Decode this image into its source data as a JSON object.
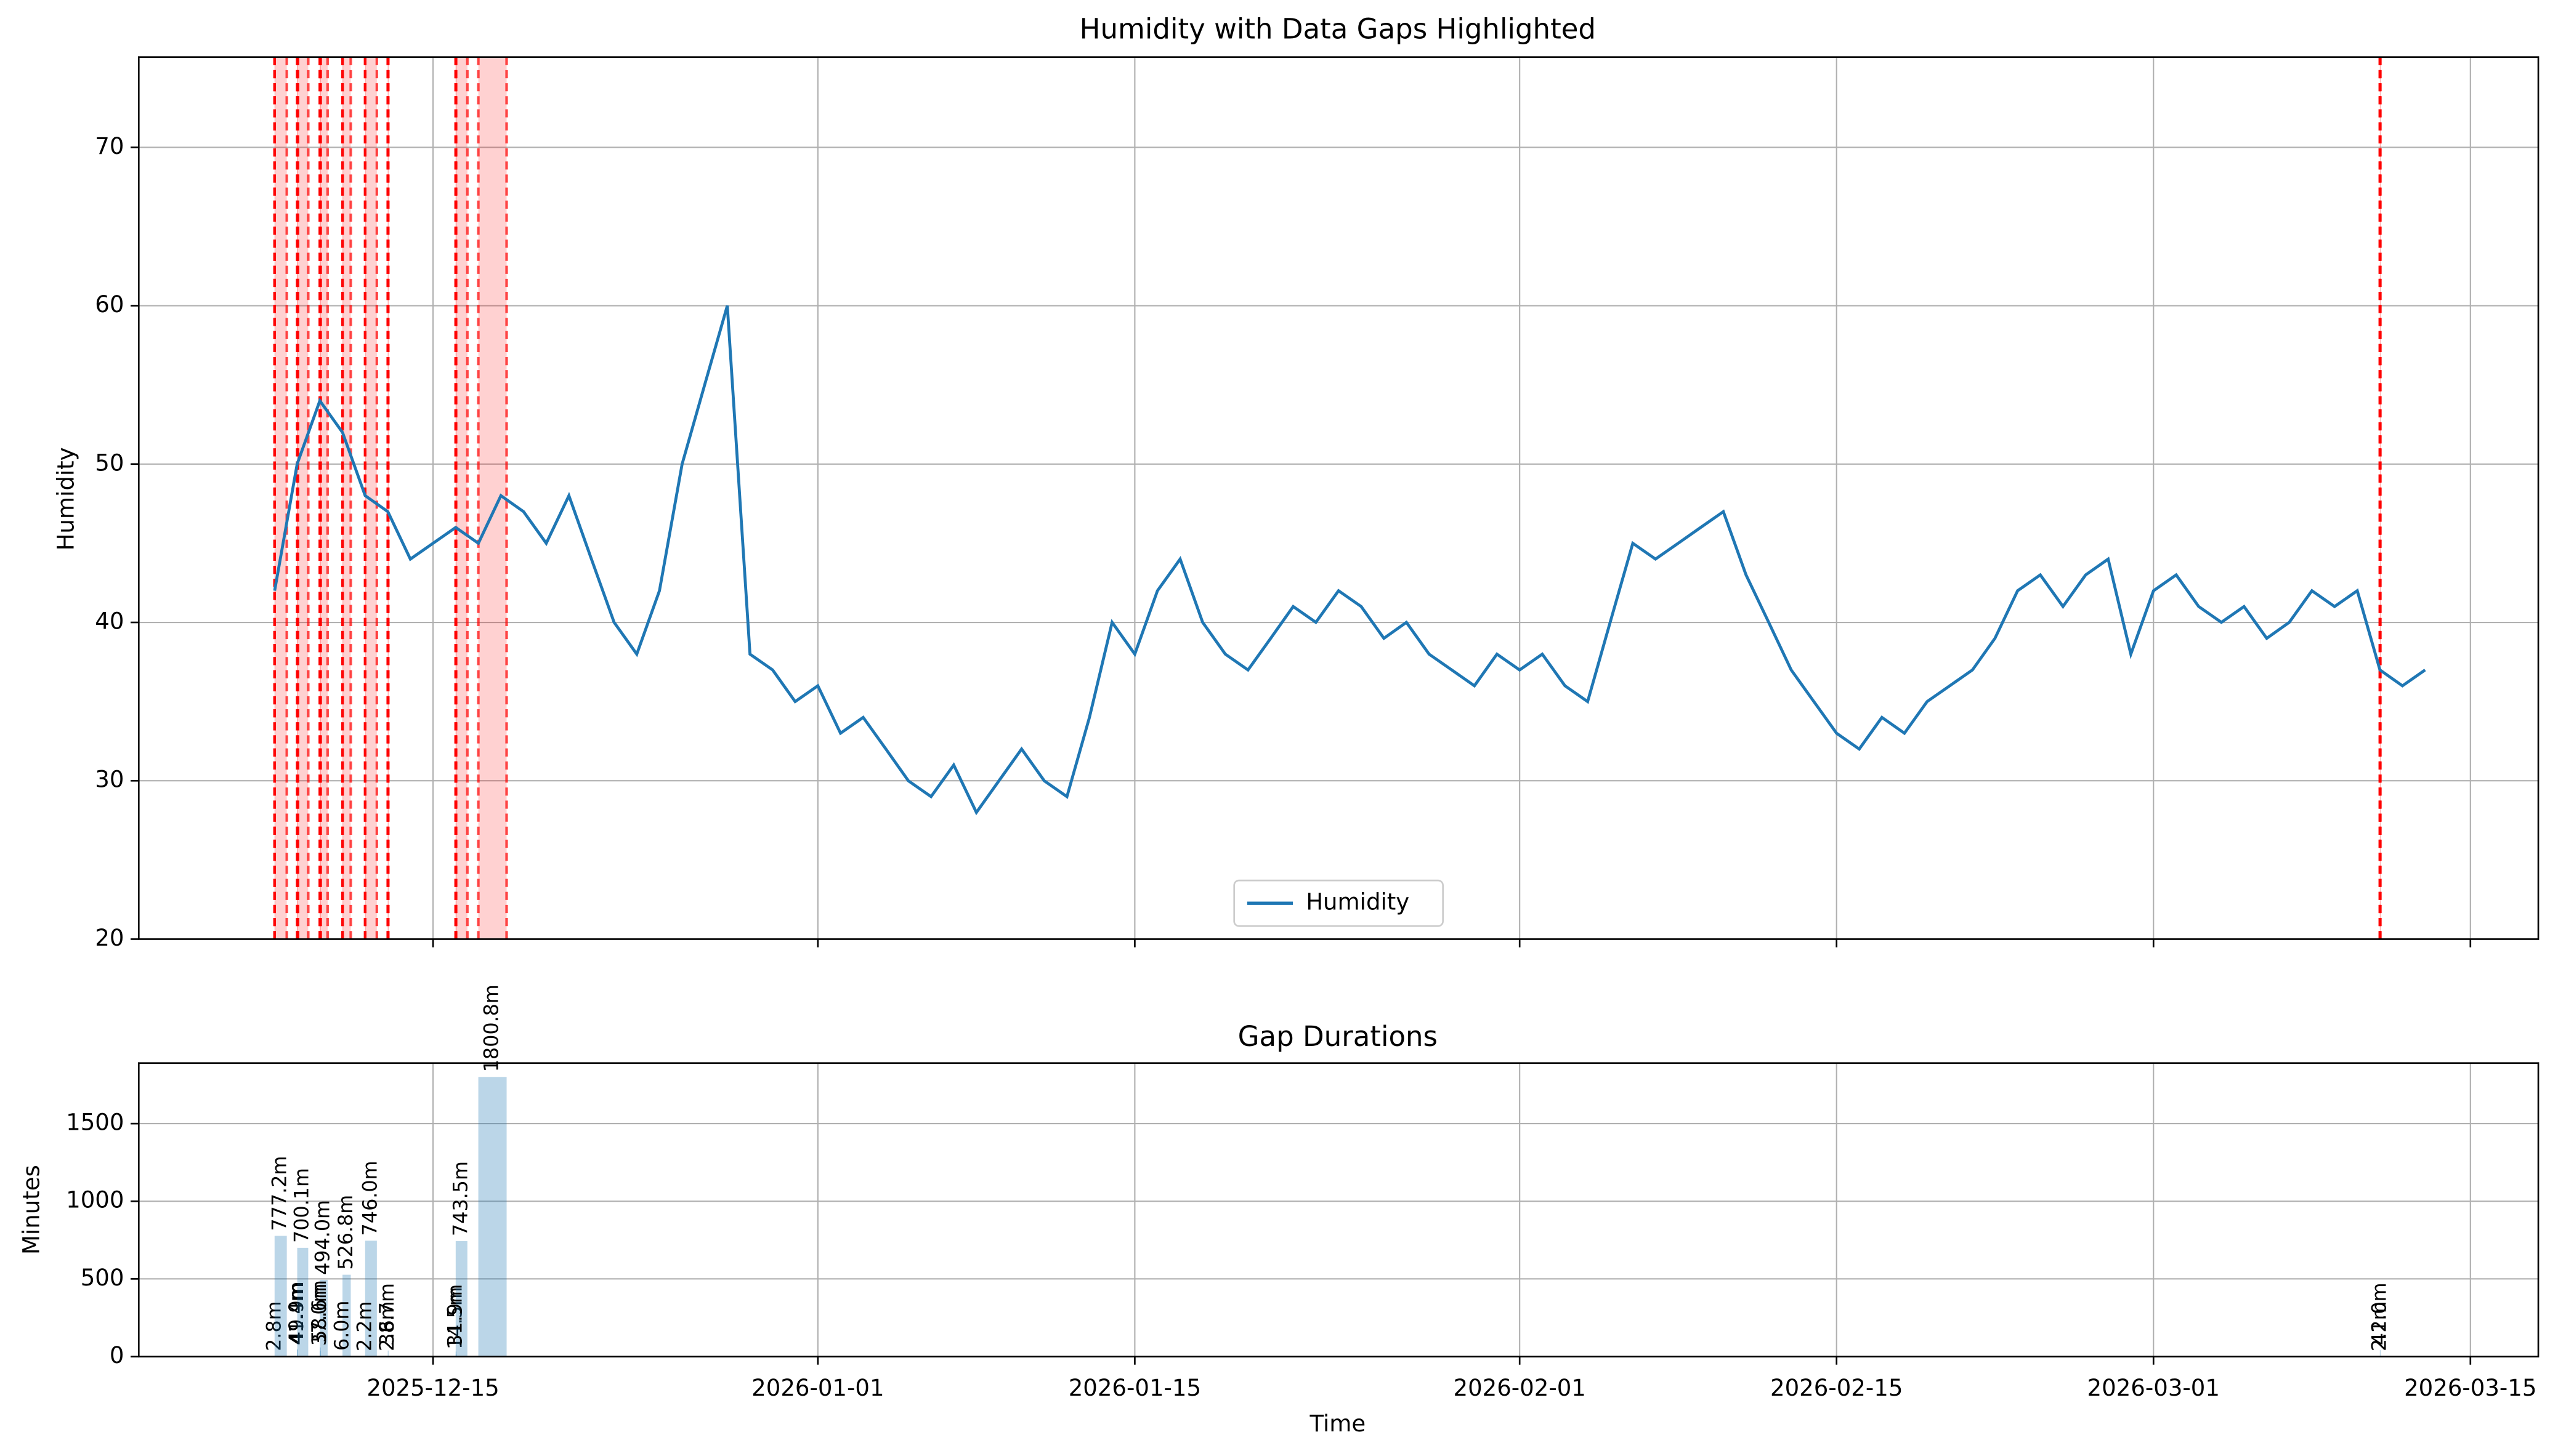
{
  "chart_data": [
    {
      "type": "line",
      "title": "Humidity with Data Gaps Highlighted",
      "ylabel": "Humidity",
      "x": [
        "2025-12-08",
        "2025-12-09",
        "2025-12-10",
        "2025-12-11",
        "2025-12-12",
        "2025-12-13",
        "2025-12-14",
        "2025-12-15",
        "2025-12-16",
        "2025-12-17",
        "2025-12-18",
        "2025-12-19",
        "2025-12-20",
        "2025-12-21",
        "2025-12-22",
        "2025-12-23",
        "2025-12-24",
        "2025-12-25",
        "2025-12-26",
        "2025-12-27",
        "2025-12-28",
        "2025-12-29",
        "2025-12-30",
        "2025-12-31",
        "2026-01-01",
        "2026-01-02",
        "2026-01-03",
        "2026-01-04",
        "2026-01-05",
        "2026-01-06",
        "2026-01-07",
        "2026-01-08",
        "2026-01-09",
        "2026-01-10",
        "2026-01-11",
        "2026-01-12",
        "2026-01-13",
        "2026-01-14",
        "2026-01-15",
        "2026-01-16",
        "2026-01-17",
        "2026-01-18",
        "2026-01-19",
        "2026-01-20",
        "2026-01-21",
        "2026-01-22",
        "2026-01-23",
        "2026-01-24",
        "2026-01-25",
        "2026-01-26",
        "2026-01-27",
        "2026-01-28",
        "2026-01-29",
        "2026-01-30",
        "2026-01-31",
        "2026-02-01",
        "2026-02-02",
        "2026-02-03",
        "2026-02-04",
        "2026-02-05",
        "2026-02-06",
        "2026-02-07",
        "2026-02-08",
        "2026-02-09",
        "2026-02-10",
        "2026-02-11",
        "2026-02-12",
        "2026-02-13",
        "2026-02-14",
        "2026-02-15",
        "2026-02-16",
        "2026-02-17",
        "2026-02-18",
        "2026-02-19",
        "2026-02-20",
        "2026-02-21",
        "2026-02-22",
        "2026-02-23",
        "2026-02-24",
        "2026-02-25",
        "2026-02-26",
        "2026-02-27",
        "2026-02-28",
        "2026-03-01",
        "2026-03-02",
        "2026-03-03",
        "2026-03-04",
        "2026-03-05",
        "2026-03-06",
        "2026-03-07",
        "2026-03-08",
        "2026-03-09",
        "2026-03-10",
        "2026-03-11",
        "2026-03-12",
        "2026-03-13"
      ],
      "series": [
        {
          "name": "Humidity",
          "color": "#1f77b4",
          "values": [
            42,
            50,
            54,
            52,
            48,
            47,
            44,
            45,
            46,
            45,
            48,
            47,
            45,
            48,
            44,
            40,
            38,
            42,
            50,
            55,
            60,
            38,
            37,
            35,
            36,
            33,
            34,
            32,
            30,
            29,
            31,
            28,
            30,
            32,
            30,
            29,
            34,
            40,
            38,
            42,
            44,
            40,
            38,
            37,
            39,
            41,
            40,
            42,
            41,
            39,
            40,
            38,
            37,
            36,
            38,
            37,
            38,
            36,
            35,
            40,
            45,
            44,
            45,
            46,
            47,
            43,
            40,
            37,
            35,
            33,
            32,
            34,
            33,
            35,
            36,
            37,
            39,
            42,
            43,
            41,
            43,
            44,
            38,
            42,
            43,
            41,
            40,
            41,
            39,
            40,
            42,
            41,
            42,
            37,
            36,
            37
          ]
        }
      ],
      "xlim": [
        "2025-12-02",
        "2026-03-18"
      ],
      "xticks": [
        "2025-12-15",
        "2026-01-01",
        "2026-01-15",
        "2026-02-01",
        "2026-02-15",
        "2026-03-01",
        "2026-03-15"
      ],
      "ylim": [
        20,
        75.7
      ],
      "yticks": [
        20,
        30,
        40,
        50,
        60,
        70
      ],
      "grid": true,
      "legend": "lower center",
      "highlight_color": "#ff0000"
    },
    {
      "type": "bar",
      "title": "Gap Durations",
      "xlabel": "Time",
      "ylabel": "Minutes",
      "x": [
        "2025-12-08",
        "2025-12-08",
        "2025-12-09",
        "2025-12-09",
        "2025-12-09",
        "2025-12-10",
        "2025-12-10",
        "2025-12-10",
        "2025-12-11",
        "2025-12-11",
        "2025-12-12",
        "2025-12-12",
        "2025-12-13",
        "2025-12-13",
        "2025-12-16",
        "2025-12-16",
        "2025-12-16",
        "2025-12-17",
        "2026-03-11",
        "2026-03-11"
      ],
      "values": [
        2.8,
        777.2,
        41.4,
        49.9,
        700.1,
        494.0,
        37.0,
        58.6,
        526.8,
        6.0,
        746.0,
        2.2,
        38.7,
        2.6,
        14.5,
        743.5,
        31.9,
        1800.8,
        2.2,
        41.0
      ],
      "value_labels": [
        "2.8m",
        "777.2m",
        "41.4m",
        "49.9m",
        "700.1m",
        "494.0m",
        "37.0m",
        "58.6m",
        "526.8m",
        "6.0m",
        "746.0m",
        "2.2m",
        "38.7m",
        "2.6m",
        "14.5m",
        "743.5m",
        "31.9m",
        "1800.8m",
        "2.2m",
        "41.0m"
      ],
      "xlim": [
        "2025-12-02",
        "2026-03-18"
      ],
      "xticks": [
        "2025-12-15",
        "2026-01-01",
        "2026-01-15",
        "2026-02-01",
        "2026-02-15",
        "2026-03-01",
        "2026-03-15"
      ],
      "ylim": [
        0,
        1890
      ],
      "yticks": [
        0,
        500,
        1000,
        1500
      ],
      "grid": true,
      "color": "#1f77b4"
    }
  ]
}
